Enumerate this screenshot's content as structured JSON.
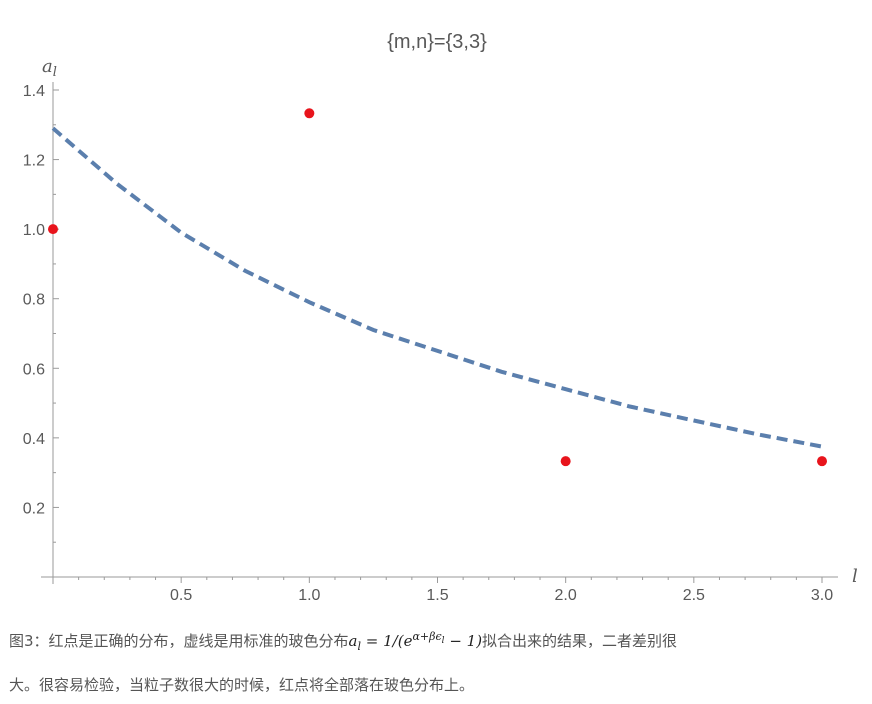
{
  "chart_data": {
    "type": "scatter",
    "title": "{m,n}={3,3}",
    "xlabel": "l",
    "ylabel": "a",
    "ylabel_sub": "l",
    "xlim": [
      0,
      3.1
    ],
    "ylim": [
      0,
      1.42
    ],
    "x_ticks": [
      0.5,
      1.0,
      1.5,
      2.0,
      2.5,
      3.0
    ],
    "x_tick_labels": [
      "0.5",
      "1.0",
      "1.5",
      "2.0",
      "2.5",
      "3.0"
    ],
    "y_ticks": [
      0.2,
      0.4,
      0.6,
      0.8,
      1.0,
      1.2,
      1.4
    ],
    "y_tick_labels": [
      "0.2",
      "0.4",
      "0.6",
      "0.8",
      "1.0",
      "1.2",
      "1.4"
    ],
    "grid": false,
    "points": {
      "x": [
        0,
        1,
        2,
        3
      ],
      "y": [
        1.0,
        1.333,
        0.333,
        0.333
      ],
      "color": "#e8141c"
    },
    "fit_curve": {
      "style": "dashed",
      "color": "#5b7fad",
      "x": [
        0,
        0.25,
        0.5,
        0.75,
        1.0,
        1.25,
        1.5,
        1.75,
        2.0,
        2.25,
        2.5,
        2.75,
        3.0
      ],
      "y": [
        1.29,
        1.13,
        0.99,
        0.88,
        0.79,
        0.71,
        0.65,
        0.59,
        0.54,
        0.49,
        0.45,
        0.41,
        0.375
      ]
    }
  },
  "caption": {
    "line1_before": "图3：红点是正确的分布，虚线是用标准的玻色分布",
    "formula": "a_l = 1/(e^(α+βε_l) − 1)",
    "formula_lhs": "a",
    "formula_lhs_sub": "l",
    "formula_eq": " = 1/(",
    "formula_e": "e",
    "formula_exp": "α+βϵ",
    "formula_exp_sub": "l",
    "formula_tail": " − 1)",
    "line1_after": "拟合出来的结果，二者差别很",
    "line2": "大。很容易检验，当粒子数很大的时候，红点将全部落在玻色分布上。"
  }
}
